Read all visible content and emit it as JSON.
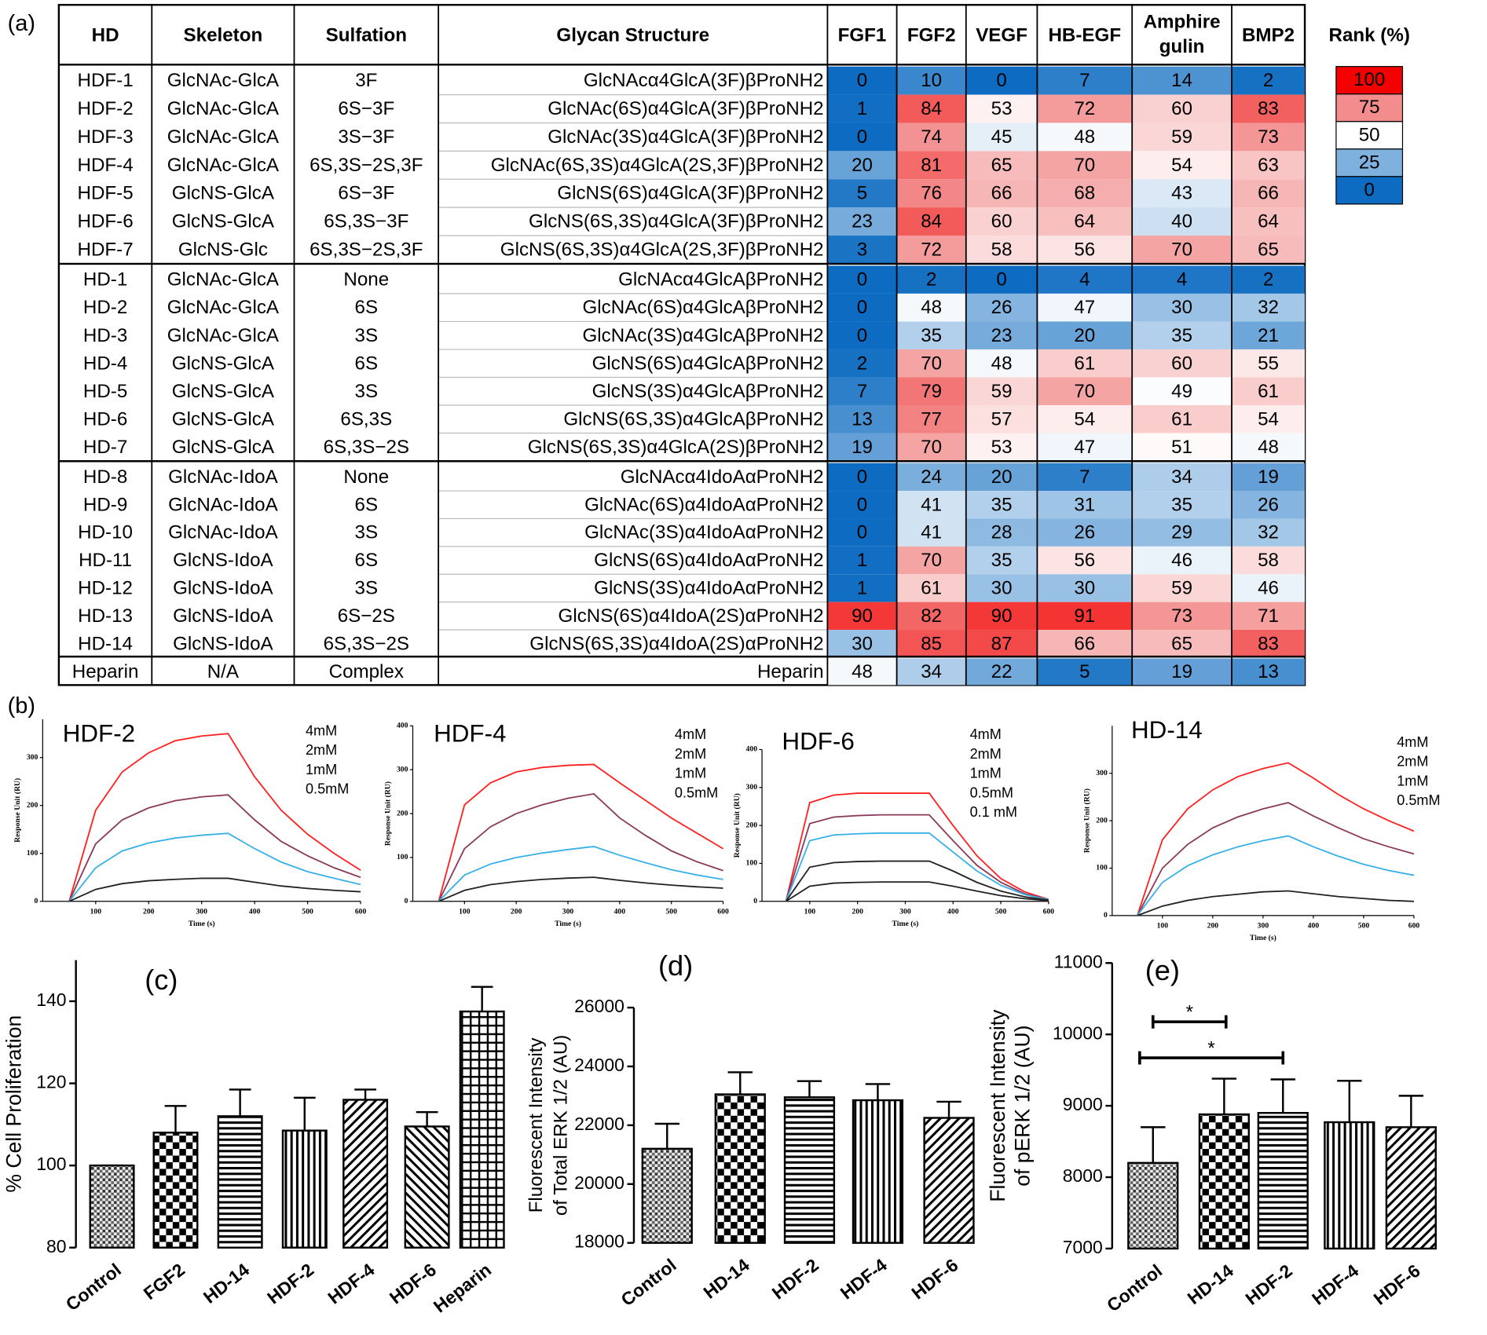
{
  "chart_data": [
    {
      "type": "heatmap",
      "panel": "(a)",
      "headers": [
        "HD",
        "Skeleton",
        "Sulfation",
        "Glycan Structure"
      ],
      "columns": [
        "FGF1",
        "FGF2",
        "VEGF",
        "HB-EGF",
        [
          "Amphire",
          "gulin"
        ],
        "BMP2"
      ],
      "row_groups": [
        [
          [
            "HDF-1",
            "GlcNAc-GlcA",
            "3F",
            "GlcNAcα4GlcA(3F)βProNH2",
            [
              0,
              10,
              0,
              7,
              14,
              2
            ]
          ],
          [
            "HDF-2",
            "GlcNAc-GlcA",
            "6S−3F",
            "GlcNAc(6S)α4GlcA(3F)βProNH2",
            [
              1,
              84,
              53,
              72,
              60,
              83
            ]
          ],
          [
            "HDF-3",
            "GlcNAc-GlcA",
            "3S−3F",
            "GlcNAc(3S)α4GlcA(3F)βProNH2",
            [
              0,
              74,
              45,
              48,
              59,
              73
            ]
          ],
          [
            "HDF-4",
            "GlcNAc-GlcA",
            "6S,3S−2S,3F",
            "GlcNAc(6S,3S)α4GlcA(2S,3F)βProNH2",
            [
              20,
              81,
              65,
              70,
              54,
              63
            ]
          ],
          [
            "HDF-5",
            "GlcNS-GlcA",
            "6S−3F",
            "GlcNS(6S)α4GlcA(3F)βProNH2",
            [
              5,
              76,
              66,
              68,
              43,
              66
            ]
          ],
          [
            "HDF-6",
            "GlcNS-GlcA",
            "6S,3S−3F",
            "GlcNS(6S,3S)α4GlcA(3F)βProNH2",
            [
              23,
              84,
              60,
              64,
              40,
              64
            ]
          ],
          [
            "HDF-7",
            "GlcNS-Glc",
            "6S,3S−2S,3F",
            "GlcNS(6S,3S)α4GlcA(2S,3F)βProNH2",
            [
              3,
              72,
              58,
              56,
              70,
              65
            ]
          ]
        ],
        [
          [
            "HD-1",
            "GlcNAc-GlcA",
            "None",
            "GlcNAcα4GlcAβProNH2",
            [
              0,
              2,
              0,
              4,
              4,
              2
            ]
          ],
          [
            "HD-2",
            "GlcNAc-GlcA",
            "6S",
            "GlcNAc(6S)α4GlcAβProNH2",
            [
              0,
              48,
              26,
              47,
              30,
              32
            ]
          ],
          [
            "HD-3",
            "GlcNAc-GlcA",
            "3S",
            "GlcNAc(3S)α4GlcAβProNH2",
            [
              0,
              35,
              23,
              20,
              35,
              21
            ]
          ],
          [
            "HD-4",
            "GlcNS-GlcA",
            "6S",
            "GlcNS(6S)α4GlcAβProNH2",
            [
              2,
              70,
              48,
              61,
              60,
              55
            ]
          ],
          [
            "HD-5",
            "GlcNS-GlcA",
            "3S",
            "GlcNS(3S)α4GlcAβProNH2",
            [
              7,
              79,
              59,
              70,
              49,
              61
            ]
          ],
          [
            "HD-6",
            "GlcNS-GlcA",
            "6S,3S",
            "GlcNS(6S,3S)α4GlcAβProNH2",
            [
              13,
              77,
              57,
              54,
              61,
              54
            ]
          ],
          [
            "HD-7",
            "GlcNS-GlcA",
            "6S,3S−2S",
            "GlcNS(6S,3S)α4GlcA(2S)βProNH2",
            [
              19,
              70,
              53,
              47,
              51,
              48
            ]
          ]
        ],
        [
          [
            "HD-8",
            "GlcNAc-IdoA",
            "None",
            "GlcNAcα4IdoAαProNH2",
            [
              0,
              24,
              20,
              7,
              34,
              19
            ]
          ],
          [
            "HD-9",
            "GlcNAc-IdoA",
            "6S",
            "GlcNAc(6S)α4IdoAαProNH2",
            [
              0,
              41,
              35,
              31,
              35,
              26
            ]
          ],
          [
            "HD-10",
            "GlcNAc-IdoA",
            "3S",
            "GlcNAc(3S)α4IdoAαProNH2",
            [
              0,
              41,
              28,
              26,
              29,
              32
            ]
          ],
          [
            "HD-11",
            "GlcNS-IdoA",
            "6S",
            "GlcNS(6S)α4IdoAαProNH2",
            [
              1,
              70,
              35,
              56,
              46,
              58
            ]
          ],
          [
            "HD-12",
            "GlcNS-IdoA",
            "3S",
            "GlcNS(3S)α4IdoAαProNH2",
            [
              1,
              61,
              30,
              30,
              59,
              46
            ]
          ],
          [
            "HD-13",
            "GlcNS-IdoA",
            "6S−2S",
            "GlcNS(6S)α4IdoA(2S)αProNH2",
            [
              90,
              82,
              90,
              91,
              73,
              71
            ]
          ],
          [
            "HD-14",
            "GlcNS-IdoA",
            "6S,3S−2S",
            "GlcNS(6S,3S)α4IdoA(2S)αProNH2",
            [
              30,
              85,
              87,
              66,
              65,
              83
            ]
          ]
        ],
        [
          [
            "Heparin",
            "N/A",
            "Complex",
            "Heparin",
            [
              48,
              34,
              22,
              5,
              19,
              13
            ]
          ]
        ]
      ],
      "colorbar": {
        "title": "Rank (%)",
        "ticks": [
          100,
          75,
          50,
          25,
          0
        ],
        "colors": [
          "#f40000",
          "#f38d8d",
          "#ffffff",
          "#7fb1de",
          "#0d6bc1"
        ]
      }
    },
    {
      "type": "line",
      "panel": "(b)",
      "title": "HDF-2",
      "xlabel": "Time (s)",
      "ylabel": "Response Unit (RU)",
      "x": [
        50,
        100,
        150,
        200,
        250,
        300,
        350,
        400,
        450,
        500,
        550,
        600
      ],
      "xlim": [
        0,
        600
      ],
      "xticks": [
        100,
        200,
        300,
        400,
        500,
        600
      ],
      "ylim": [
        0,
        380
      ],
      "yticks": [
        0,
        100,
        200,
        300
      ],
      "series": [
        {
          "name": "4mM",
          "color": "#ff2020",
          "values": [
            0,
            190,
            270,
            310,
            335,
            345,
            350,
            260,
            190,
            140,
            100,
            65
          ]
        },
        {
          "name": "2mM",
          "color": "#8b3a5a",
          "values": [
            0,
            120,
            170,
            195,
            210,
            218,
            222,
            170,
            125,
            95,
            70,
            50
          ]
        },
        {
          "name": "1mM",
          "color": "#38b0e8",
          "values": [
            0,
            70,
            105,
            122,
            132,
            138,
            142,
            110,
            82,
            62,
            48,
            35
          ]
        },
        {
          "name": "0.5mM",
          "color": "#222222",
          "values": [
            0,
            25,
            37,
            43,
            46,
            48,
            48,
            40,
            32,
            27,
            23,
            20
          ]
        }
      ]
    },
    {
      "type": "line",
      "title": "HDF-4",
      "xlabel": "Time (s)",
      "ylabel": "Response Unit (RU)",
      "x": [
        50,
        100,
        150,
        200,
        250,
        300,
        350,
        400,
        450,
        500,
        550,
        600
      ],
      "xlim": [
        0,
        600
      ],
      "xticks": [
        100,
        200,
        300,
        400,
        500,
        600
      ],
      "ylim": [
        0,
        400
      ],
      "yticks": [
        0,
        100,
        200,
        300,
        400
      ],
      "series": [
        {
          "name": "4mM",
          "color": "#ff2020",
          "values": [
            0,
            220,
            270,
            295,
            305,
            310,
            312,
            270,
            230,
            190,
            155,
            120
          ]
        },
        {
          "name": "2mM",
          "color": "#8b3a5a",
          "values": [
            0,
            120,
            170,
            200,
            220,
            235,
            245,
            190,
            150,
            115,
            90,
            70
          ]
        },
        {
          "name": "1mM",
          "color": "#38b0e8",
          "values": [
            0,
            60,
            85,
            100,
            110,
            118,
            125,
            105,
            88,
            72,
            60,
            50
          ]
        },
        {
          "name": "0.5mM",
          "color": "#222222",
          "values": [
            0,
            25,
            38,
            45,
            50,
            53,
            55,
            48,
            42,
            37,
            33,
            30
          ]
        }
      ]
    },
    {
      "type": "line",
      "title": "HDF-6",
      "xlabel": "Time (s)",
      "ylabel": "Response Unit (RU)",
      "x": [
        50,
        100,
        150,
        200,
        250,
        300,
        350,
        400,
        450,
        500,
        550,
        600
      ],
      "xlim": [
        0,
        600
      ],
      "xticks": [
        100,
        200,
        300,
        400,
        500,
        600
      ],
      "ylim": [
        0,
        400
      ],
      "yticks": [
        0,
        100,
        200,
        300,
        400
      ],
      "series": [
        {
          "name": "4mM",
          "color": "#ff2020",
          "values": [
            0,
            260,
            280,
            285,
            285,
            285,
            285,
            200,
            120,
            60,
            25,
            5
          ]
        },
        {
          "name": "2mM",
          "color": "#8b3a5a",
          "values": [
            0,
            205,
            222,
            226,
            228,
            228,
            228,
            160,
            95,
            50,
            20,
            5
          ]
        },
        {
          "name": "1mM",
          "color": "#38b0e8",
          "values": [
            0,
            160,
            175,
            178,
            180,
            180,
            180,
            130,
            80,
            42,
            18,
            4
          ]
        },
        {
          "name": "0.5mM",
          "color": "#222222",
          "values": [
            0,
            90,
            102,
            105,
            106,
            106,
            106,
            80,
            50,
            27,
            12,
            3
          ]
        },
        {
          "name": "0.1 mM",
          "color": "#222222",
          "values": [
            0,
            40,
            48,
            50,
            51,
            51,
            51,
            40,
            27,
            15,
            7,
            2
          ]
        }
      ]
    },
    {
      "type": "line",
      "title": "HD-14",
      "xlabel": "Time (s)",
      "ylabel": "Response Unit (RU)",
      "x": [
        50,
        100,
        150,
        200,
        250,
        300,
        350,
        400,
        450,
        500,
        550,
        600
      ],
      "xlim": [
        0,
        600
      ],
      "xticks": [
        100,
        200,
        300,
        400,
        500,
        600
      ],
      "ylim": [
        0,
        400
      ],
      "yticks": [
        0,
        100,
        200,
        300
      ],
      "series": [
        {
          "name": "4mM",
          "color": "#ff2020",
          "values": [
            0,
            160,
            225,
            265,
            293,
            310,
            322,
            290,
            255,
            225,
            200,
            178
          ]
        },
        {
          "name": "2mM",
          "color": "#8b3a5a",
          "values": [
            0,
            100,
            150,
            185,
            208,
            225,
            238,
            210,
            185,
            162,
            145,
            130
          ]
        },
        {
          "name": "1mM",
          "color": "#38b0e8",
          "values": [
            0,
            70,
            105,
            128,
            145,
            158,
            168,
            145,
            125,
            108,
            95,
            85
          ]
        },
        {
          "name": "0.5mM",
          "color": "#222222",
          "values": [
            0,
            20,
            32,
            40,
            45,
            50,
            52,
            46,
            40,
            36,
            32,
            30
          ]
        }
      ]
    },
    {
      "type": "bar",
      "panel": "(c)",
      "ylabel": [
        "% Cell Proliferation"
      ],
      "categories": [
        "Control",
        "FGF2",
        "HD-14",
        "HDF-2",
        "HDF-4",
        "HDF-6",
        "Heparin"
      ],
      "values": [
        100,
        108,
        112,
        108.5,
        116,
        109.5,
        137.5
      ],
      "errors": [
        0,
        6.5,
        6.5,
        8,
        2.5,
        3.5,
        6
      ],
      "ylim": [
        80,
        150
      ],
      "yticks": [
        80,
        100,
        120,
        140
      ]
    },
    {
      "type": "bar",
      "panel": "(d)",
      "ylabel": [
        "Fluorescent Intensity",
        "of Total ERK 1/2  (AU)"
      ],
      "categories": [
        "Control",
        "HD-14",
        "HDF-2",
        "HDF-4",
        "HDF-6"
      ],
      "values": [
        21200,
        23050,
        22950,
        22850,
        22250
      ],
      "errors": [
        850,
        750,
        550,
        550,
        550
      ],
      "ylim": [
        18000,
        26000
      ],
      "yticks": [
        18000,
        20000,
        22000,
        24000,
        26000
      ]
    },
    {
      "type": "bar",
      "panel": "(e)",
      "ylabel": [
        "Fluorescent Intensity",
        "of pERK 1/2  (AU)"
      ],
      "categories": [
        "Control",
        "HD-14",
        "HDF-2",
        "HDF-4",
        "HDF-6"
      ],
      "values": [
        8200,
        8880,
        8900,
        8770,
        8700
      ],
      "errors": [
        500,
        500,
        470,
        580,
        440
      ],
      "ylim": [
        7000,
        11000
      ],
      "yticks": [
        7000,
        8000,
        9000,
        10000,
        11000
      ],
      "significance": [
        {
          "from": "Control",
          "to": "HD-14",
          "label": "*"
        },
        {
          "from": "Control",
          "to": "HDF-2",
          "label": "*"
        }
      ]
    }
  ]
}
